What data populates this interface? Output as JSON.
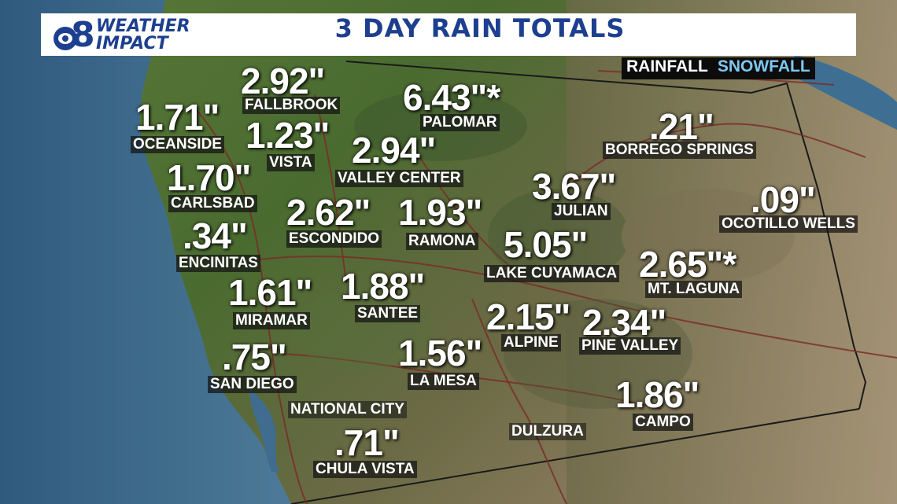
{
  "header": {
    "logo": {
      "number": "8",
      "line1": "WEATHER",
      "line2": "IMPACT"
    },
    "title": "3 DAY RAIN TOTALS"
  },
  "tabs": {
    "rainfall": "RAINFALL",
    "snowfall": "SNOWFALL"
  },
  "colors": {
    "header_bg": "#ffffff",
    "title": "#1d3f8f",
    "snowfall": "#7ec8f0",
    "label_bg": "#141414",
    "value": "#ffffff"
  },
  "locations": {
    "fallbrook": {
      "value": "2.92\"",
      "name": "FALLBROOK"
    },
    "palomar": {
      "value": "6.43\"*",
      "name": "PALOMAR"
    },
    "oceanside": {
      "value": "1.71\"",
      "name": "OCEANSIDE"
    },
    "vista": {
      "value": "1.23\"",
      "name": "VISTA"
    },
    "valley_center": {
      "value": "2.94\"",
      "name": "VALLEY CENTER"
    },
    "borrego_springs": {
      "value": ".21\"",
      "name": "BORREGO SPRINGS"
    },
    "carlsbad": {
      "value": "1.70\"",
      "name": "CARLSBAD"
    },
    "julian": {
      "value": "3.67\"",
      "name": "JULIAN"
    },
    "ocotillo_wells": {
      "value": ".09\"",
      "name": "OCOTILLO WELLS"
    },
    "escondido": {
      "value": "2.62\"",
      "name": "ESCONDIDO"
    },
    "ramona": {
      "value": "1.93\"",
      "name": "RAMONA"
    },
    "encinitas": {
      "value": ".34\"",
      "name": "ENCINITAS"
    },
    "lake_cuyamaca": {
      "value": "5.05\"",
      "name": "LAKE CUYAMACA"
    },
    "mt_laguna": {
      "value": "2.65\"*",
      "name": "MT. LAGUNA"
    },
    "miramar": {
      "value": "1.61\"",
      "name": "MIRAMAR"
    },
    "santee": {
      "value": "1.88\"",
      "name": "SANTEE"
    },
    "alpine": {
      "value": "2.15\"",
      "name": "ALPINE"
    },
    "pine_valley": {
      "value": "2.34\"",
      "name": "PINE VALLEY"
    },
    "san_diego": {
      "value": ".75\"",
      "name": "SAN DIEGO"
    },
    "la_mesa": {
      "value": "1.56\"",
      "name": "LA MESA"
    },
    "campo": {
      "value": "1.86\"",
      "name": "CAMPO"
    },
    "chula_vista": {
      "value": ".71\"",
      "name": "CHULA VISTA"
    }
  },
  "places": {
    "national_city": "NATIONAL CITY",
    "dulzura": "DULZURA"
  }
}
